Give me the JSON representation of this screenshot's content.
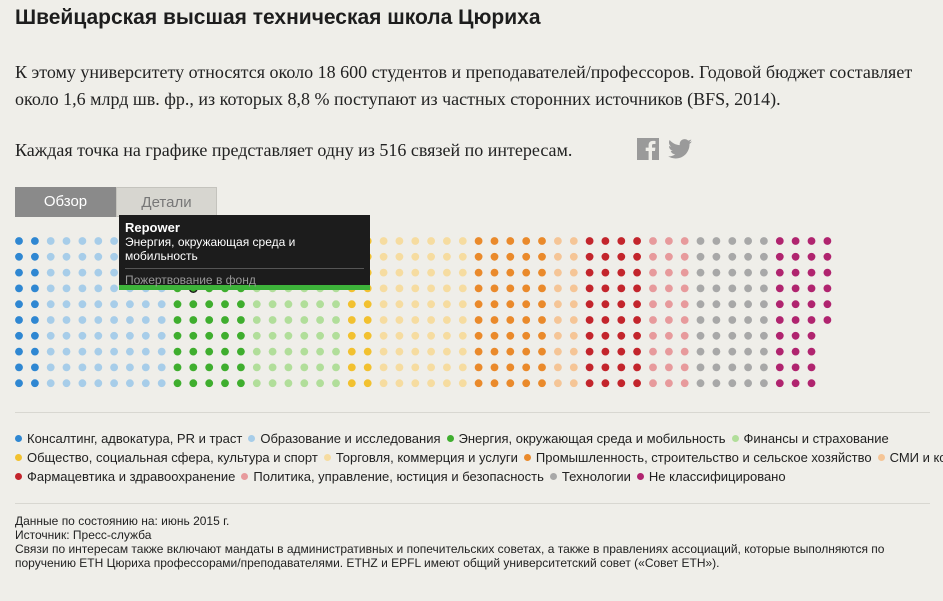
{
  "title": "Швейцарская высшая техническая школа Цюриха",
  "intro": "К этому университету относятся около 18 600 студентов и преподавателей/профессоров. Годовой бюджет составляет около 1,6 млрд шв. фр., из которых 8,8 % поступают из частных сторонних источников (BFS, 2014).",
  "dot_info": "Каждая точка на графике представляет одну из 516 связей по интересам.",
  "share": {
    "facebook_icon": "facebook-icon",
    "twitter_icon": "twitter-icon"
  },
  "tabs": [
    {
      "label": "Обзор",
      "active": true
    },
    {
      "label": "Детали",
      "active": false
    }
  ],
  "tooltip": {
    "name": "Repower",
    "category": "Энергия, окружающая среда и мобильность",
    "type": "Пожертвование в фонд"
  },
  "chart_data": {
    "type": "dot-matrix",
    "total": 516,
    "rows": 10,
    "highlighted": {
      "category": "Энергия, окружающая среда и мобильность",
      "index": 3
    },
    "categories": [
      {
        "name": "Консалтинг, адвокатура, PR и траст",
        "color": "#2f87d2",
        "count": 20
      },
      {
        "name": "Образование и исследования",
        "color": "#a7cde9",
        "count": 80
      },
      {
        "name": "Энергия, окружающая среда и мобильность",
        "color": "#3fae2e",
        "count": 50
      },
      {
        "name": "Финансы и страхование",
        "color": "#b1de9a",
        "count": 60
      },
      {
        "name": "Общество, социальная сфера, культура и спорт",
        "color": "#f2c12f",
        "count": 20
      },
      {
        "name": "Торговля, коммерция и услуги",
        "color": "#f6dca0",
        "count": 60
      },
      {
        "name": "Промышленность, строительство и сельское хозяйство",
        "color": "#ea8a2b",
        "count": 50
      },
      {
        "name": "СМИ и коммуникации",
        "color": "#f5c596",
        "count": 20
      },
      {
        "name": "Фармацевтика и здравоохранение",
        "color": "#c3252c",
        "count": 40
      },
      {
        "name": "Политика, управление, юстиция и безопасность",
        "color": "#e79a9c",
        "count": 30
      },
      {
        "name": "Технологии",
        "color": "#a8a8a8",
        "count": 50
      },
      {
        "name": "Не классифицировано",
        "color": "#b0246f",
        "count": 36
      }
    ]
  },
  "notes": {
    "date": "Данные по состоянию на: июнь 2015 г.",
    "source": "Источник: Пресс-служба",
    "text": "Связи по интересам также включают мандаты в административных и попечительских советах, а также в правлениях ассоциаций, которые выполняются по поручению ETH Цюриха профессорами/преподавателями. ETHZ и EPFL имеют общий университетский совет («Совет ETH»)."
  }
}
